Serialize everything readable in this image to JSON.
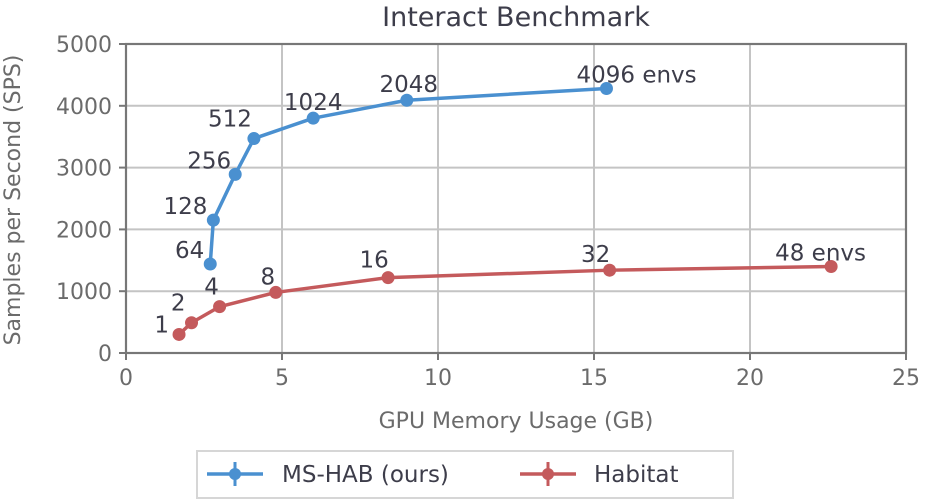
{
  "chart_data": {
    "type": "line",
    "title": "Interact Benchmark",
    "xlabel": "GPU Memory Usage (GB)",
    "ylabel": "Samples per Second (SPS)",
    "xlim": [
      0,
      25
    ],
    "ylim": [
      0,
      5000
    ],
    "xticks": [
      0,
      5,
      10,
      15,
      20,
      25
    ],
    "yticks": [
      0,
      1000,
      2000,
      3000,
      4000,
      5000
    ],
    "grid": true,
    "legend_position": "below",
    "series": [
      {
        "name": "MS-HAB (ours)",
        "color": "#4a90d0",
        "points": [
          {
            "x": 2.7,
            "y": 1440,
            "label": "64"
          },
          {
            "x": 2.8,
            "y": 2150,
            "label": "128"
          },
          {
            "x": 3.5,
            "y": 2890,
            "label": "256"
          },
          {
            "x": 4.1,
            "y": 3470,
            "label": "512"
          },
          {
            "x": 6.0,
            "y": 3800,
            "label": "1024"
          },
          {
            "x": 9.0,
            "y": 4090,
            "label": "2048"
          },
          {
            "x": 15.4,
            "y": 4280,
            "label": "4096 envs"
          }
        ]
      },
      {
        "name": "Habitat",
        "color": "#c45a5c",
        "points": [
          {
            "x": 1.7,
            "y": 300,
            "label": "1"
          },
          {
            "x": 2.1,
            "y": 490,
            "label": "2"
          },
          {
            "x": 3.0,
            "y": 750,
            "label": "4"
          },
          {
            "x": 4.8,
            "y": 980,
            "label": "8"
          },
          {
            "x": 8.4,
            "y": 1220,
            "label": "16"
          },
          {
            "x": 15.5,
            "y": 1340,
            "label": "32"
          },
          {
            "x": 22.6,
            "y": 1400,
            "label": "48 envs"
          }
        ]
      }
    ]
  }
}
